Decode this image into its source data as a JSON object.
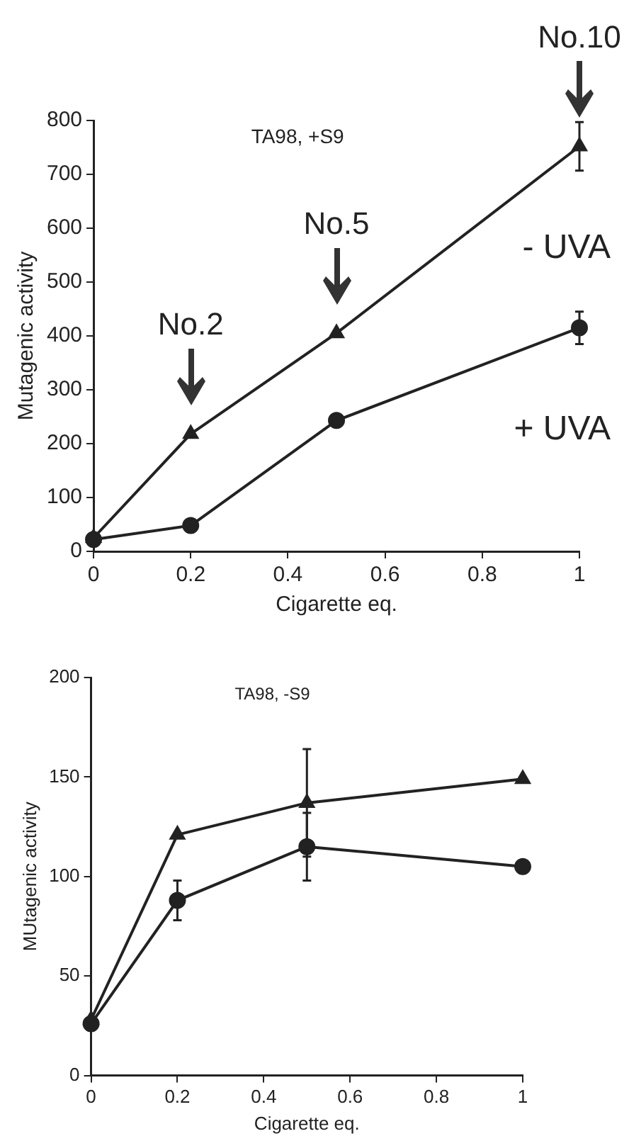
{
  "chart_data": [
    {
      "type": "line",
      "xlabel": "Cigarette eq.",
      "ylabel": "Mutagenic activity",
      "x": [
        0,
        0.2,
        0.5,
        1
      ],
      "xlim": [
        0,
        1
      ],
      "xticks": [
        0,
        0.2,
        0.4,
        0.6,
        0.8,
        1
      ],
      "ylim": [
        0,
        800
      ],
      "yticks": [
        0,
        100,
        200,
        300,
        400,
        500,
        600,
        700,
        800
      ],
      "line_style": "solid",
      "series": [
        {
          "name": "- UVA",
          "color": "#222222",
          "marker": "triangle",
          "values": [
            25,
            218,
            405,
            752
          ],
          "errors": [
            null,
            null,
            null,
            45
          ]
        },
        {
          "name": "+ UVA",
          "color": "#222222",
          "marker": "circle",
          "values": [
            22,
            48,
            243,
            415
          ],
          "errors": [
            null,
            null,
            null,
            30
          ]
        }
      ],
      "annotations": [
        "TA98, +S9",
        {
          "text": "No.2",
          "x": 0.2,
          "y": 218
        },
        {
          "text": "No.5",
          "x": 0.5,
          "y": 405
        },
        {
          "text": "No.10",
          "x": 1,
          "y": 752
        }
      ]
    },
    {
      "type": "line",
      "xlabel": "Cigarette eq.",
      "ylabel": "MUtagenic activity",
      "x": [
        0,
        0.2,
        0.5,
        1
      ],
      "xlim": [
        0,
        1
      ],
      "xticks": [
        0,
        0.2,
        0.4,
        0.6,
        0.8,
        1
      ],
      "ylim": [
        0,
        200
      ],
      "yticks": [
        0,
        50,
        100,
        150,
        200
      ],
      "line_style": "solid",
      "series": [
        {
          "color": "#222222",
          "marker": "triangle",
          "values": [
            28,
            121,
            137,
            149
          ],
          "errors": [
            null,
            null,
            27,
            null
          ]
        },
        {
          "color": "#222222",
          "marker": "circle",
          "values": [
            26,
            88,
            115,
            105
          ],
          "errors": [
            3,
            10,
            17,
            null
          ]
        }
      ],
      "annotations": [
        "TA98, -S9"
      ]
    }
  ]
}
